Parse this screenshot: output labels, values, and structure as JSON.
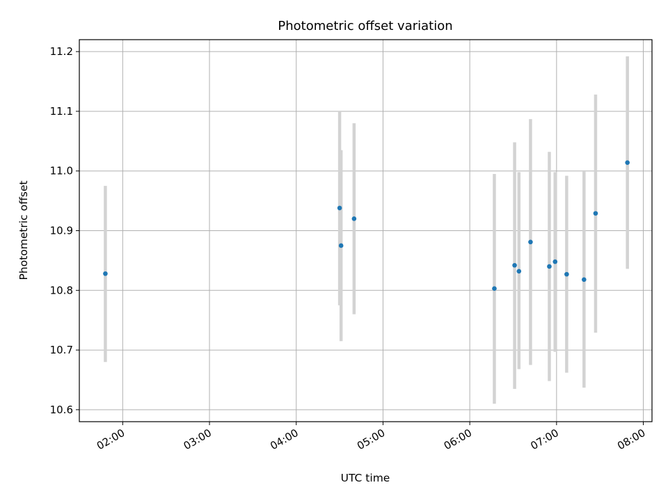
{
  "chart_data": {
    "type": "scatter",
    "title": "Photometric offset variation",
    "xlabel": "UTC time",
    "ylabel": "Photometric offset",
    "x_ticks": [
      "02:00",
      "03:00",
      "04:00",
      "05:00",
      "06:00",
      "07:00",
      "08:00"
    ],
    "y_ticks": [
      "10.6",
      "10.7",
      "10.8",
      "10.9",
      "11.0",
      "11.1",
      "11.2"
    ],
    "xlim": [
      "01:30",
      "08:06"
    ],
    "ylim": [
      10.58,
      11.22
    ],
    "grid": true,
    "colors": {
      "point": "#1f77b4",
      "errorbar": "#d3d3d3",
      "grid": "#b0b0b0"
    },
    "series": [
      {
        "points": [
          {
            "t": "01:48",
            "y": 10.828,
            "lo": 10.68,
            "hi": 10.975
          },
          {
            "t": "04:30",
            "y": 10.938,
            "lo": 10.775,
            "hi": 11.1
          },
          {
            "t": "04:31",
            "y": 10.875,
            "lo": 10.715,
            "hi": 11.035
          },
          {
            "t": "04:40",
            "y": 10.92,
            "lo": 10.76,
            "hi": 11.08
          },
          {
            "t": "06:17",
            "y": 10.803,
            "lo": 10.61,
            "hi": 10.995
          },
          {
            "t": "06:31",
            "y": 10.842,
            "lo": 10.635,
            "hi": 11.048
          },
          {
            "t": "06:34",
            "y": 10.832,
            "lo": 10.668,
            "hi": 10.998
          },
          {
            "t": "06:42",
            "y": 10.881,
            "lo": 10.675,
            "hi": 11.087
          },
          {
            "t": "06:55",
            "y": 10.84,
            "lo": 10.648,
            "hi": 11.032
          },
          {
            "t": "06:59",
            "y": 10.848,
            "lo": 10.697,
            "hi": 10.998
          },
          {
            "t": "07:07",
            "y": 10.827,
            "lo": 10.662,
            "hi": 10.992
          },
          {
            "t": "07:19",
            "y": 10.818,
            "lo": 10.637,
            "hi": 10.999
          },
          {
            "t": "07:27",
            "y": 10.929,
            "lo": 10.729,
            "hi": 11.128
          },
          {
            "t": "07:49",
            "y": 11.014,
            "lo": 10.836,
            "hi": 11.192
          }
        ]
      }
    ]
  }
}
